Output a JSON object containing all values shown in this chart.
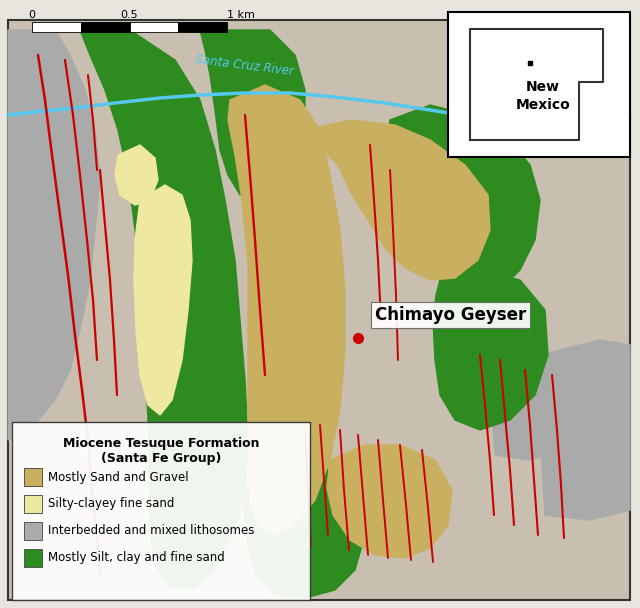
{
  "legend_title1": "Miocene Tesuque Formation",
  "legend_title2": "(Santa Fe Group)",
  "legend_items": [
    {
      "label": "Mostly Sand and Gravel",
      "color": "#C8B060"
    },
    {
      "label": "Silty-clayey fine sand",
      "color": "#EEE8A0"
    },
    {
      "label": "Interbedded and mixed lithosomes",
      "color": "#AAAAAA"
    },
    {
      "label": "Mostly Silt, clay and fine sand",
      "color": "#2E8B20"
    }
  ],
  "map_bg": "#C8BFB0",
  "river_color": "#55C8F0",
  "fault_color": "#CC0000",
  "border_color": "#333333",
  "chimayo_dot_color": "#CC0000",
  "chimayo_label": "Chimayo Geyser",
  "river_label": "Santa Cruz River"
}
